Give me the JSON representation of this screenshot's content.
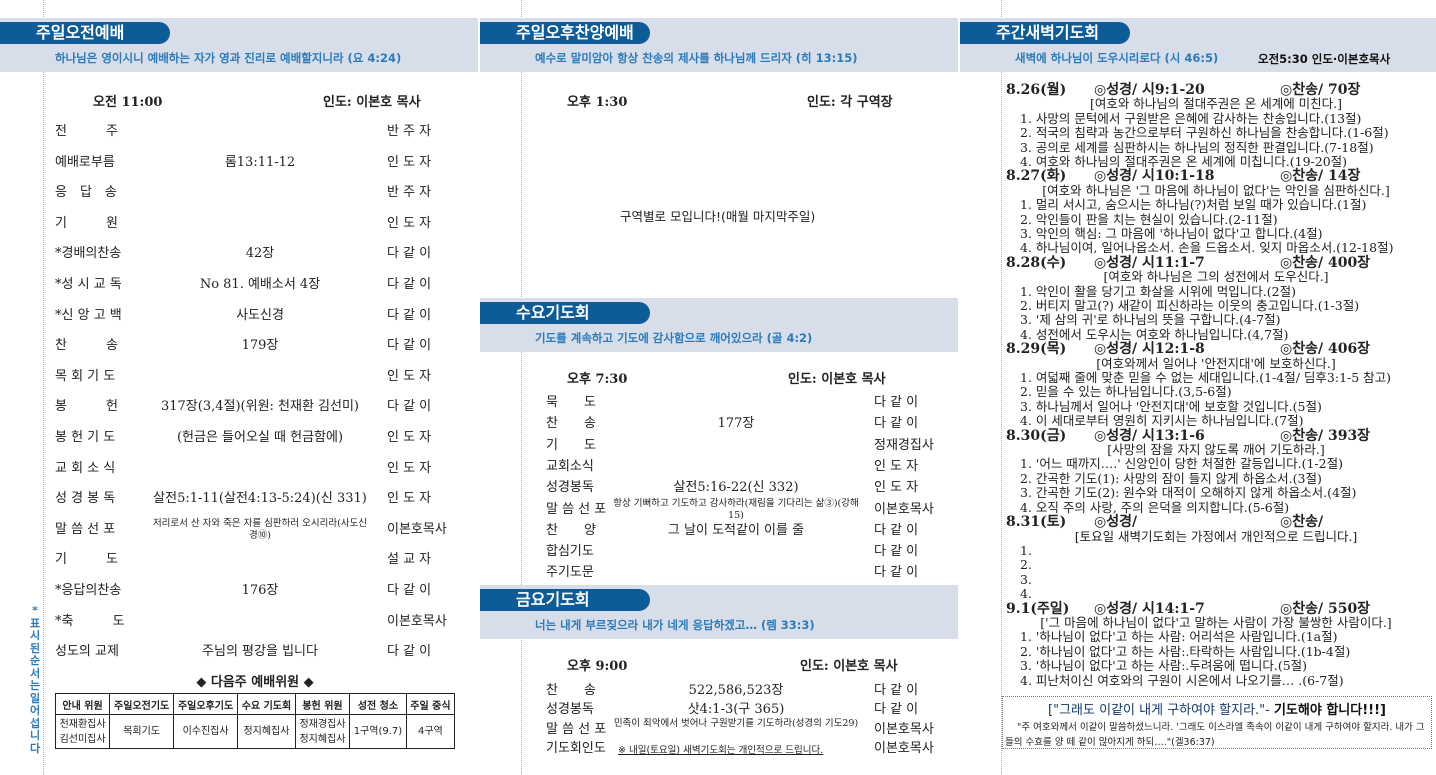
{
  "side_note": "*표시된 순서는 일어섭니다",
  "morning": {
    "title": "주일오전예배",
    "verse": "하나님은 영이시니 예배하는 자가 영과 진리로 예배할지니라 (요 4:24)",
    "time": "오전 11:00",
    "leader": "인도: 이본호 목사",
    "rows": [
      [
        "전　　　주",
        "",
        "반 주 자"
      ],
      [
        "예배로부름",
        "롬13:11-12",
        "인 도 자"
      ],
      [
        "응　답　송",
        "",
        "반 주 자"
      ],
      [
        "기　　　원",
        "",
        "인 도 자"
      ],
      [
        "*경배의찬송",
        "42장",
        "다 같 이"
      ],
      [
        "*성 시 교 독",
        "No 81. 예배소서 4장",
        "다 같 이"
      ],
      [
        "*신 앙 고 백",
        "사도신경",
        "다 같 이"
      ],
      [
        "찬　　　송",
        "179장",
        "다 같 이"
      ],
      [
        "목 회 기 도",
        "",
        "인 도 자"
      ],
      [
        "봉　　　헌",
        "317장(3,4절)(위원: 천재환 김선미)",
        "다 같 이"
      ],
      [
        "봉 헌 기 도",
        "(헌금은 들어오실 때 헌금함에)",
        "인 도 자"
      ],
      [
        "교 회 소 식",
        "",
        "인 도 자"
      ],
      [
        "성 경 봉 독",
        "살전5:1-11(살전4:13-5:24)(신 331)",
        "인 도 자"
      ],
      [
        "말 씀 선 포",
        "저리로서 산 자와 죽은 자를 심판하러 오시리라(사도신경⑩)",
        "이본호목사"
      ],
      [
        "기　　　도",
        "",
        "설 교 자"
      ],
      [
        "*응답의찬송",
        "176장",
        "다 같 이"
      ],
      [
        "*축　　　도",
        "",
        "이본호목사"
      ],
      [
        "성도의 교제",
        "주님의 평강을 빕니다",
        "다 같 이"
      ]
    ],
    "next_week": {
      "title": "◆ 다음주 예배위원 ◆",
      "headers": [
        "안내 위원",
        "주일오전기도",
        "주일오후기도",
        "수요 기도회",
        "봉헌 위원",
        "성전 청소",
        "주일 중식"
      ],
      "cells": [
        "천재환집사\n김선미집사",
        "목회기도",
        "이수진집사",
        "정지혜집사",
        "정재경집사\n정지혜집사",
        "1구역(9.7)",
        "4구역"
      ]
    }
  },
  "afternoon": {
    "title": "주일오후찬양예배",
    "verse": "예수로 말미암아 항상 찬송의 제사를 하나님께 드리자 (히 13:15)",
    "time": "오후 1:30",
    "leader": "인도: 각 구역장",
    "note": "구역별로 모입니다!(매월 마지막주일)"
  },
  "wednesday": {
    "title": "수요기도회",
    "verse": "기도를 계속하고 기도에 감사함으로 깨어있으라 (골 4:2)",
    "time": "오후 7:30",
    "leader": "인도: 이본호 목사",
    "rows": [
      [
        "묵　　도",
        "",
        "다 같 이"
      ],
      [
        "찬　　송",
        "177장",
        "다 같 이"
      ],
      [
        "기　　도",
        "",
        "정재경집사"
      ],
      [
        "교회소식",
        "",
        "인 도 자"
      ],
      [
        "성경봉독",
        "살전5:16-22(신 332)",
        "인 도 자"
      ],
      [
        "말 씀 선 포",
        "항상 기뻐하고 기도하고 감사하라(재림을 기다리는 삶③)(강해15)",
        "이본호목사"
      ],
      [
        "찬　　양",
        "그 날이 도적같이 이를 줄",
        "다 같 이"
      ],
      [
        "합심기도",
        "",
        "다 같 이"
      ],
      [
        "주기도문",
        "",
        "다 같 이"
      ]
    ]
  },
  "friday": {
    "title": "금요기도회",
    "verse": "너는 내게 부르짖으라 내가 네게 응답하겠고… (렘 33:3)",
    "time": "오후 9:00",
    "leader": "인도: 이본호 목사",
    "rows": [
      [
        "찬　　송",
        "522,586,523장",
        "다 같 이"
      ],
      [
        "성경봉독",
        "삿4:1-3(구 365)",
        "다 같 이"
      ],
      [
        "말 씀 선 포",
        "민족이 죄악에서 벗어나 구원받기를 기도하라(성경의 기도29)",
        "이본호목사"
      ],
      [
        "기도회인도",
        "",
        "이본호목사"
      ]
    ],
    "note": "※ 내일(토요일) 새벽기도회는 개인적으로 드립니다."
  },
  "dawn": {
    "title": "주간새벽기도회",
    "verse": "새벽에 하나님이 도우시리로다 (시 46:5)",
    "time_leader": "오전5:30 인도·이본호목사",
    "days": [
      {
        "date": "8.26(월)",
        "bible": "◎성경/ 시9:1-20",
        "hymn": "◎찬송/ 70장",
        "theme": "[여호와 하나님의 절대주권은 온 세계에 미친다.]",
        "items": [
          "1. 사망의 문턱에서 구원받은 은혜에 감사하는 찬송입니다.(13절)",
          "2. 적국의 침략과 농간으로부터 구원하신 하나님을 찬송합니다.(1-6절)",
          "3. 공의로 세계를 심판하시는 하나님의 정직한 판결입니다.(7-18절)",
          "4. 여호와 하나님의 절대주권은 온 세계에 미칩니다.(19-20절)"
        ]
      },
      {
        "date": "8.27(화)",
        "bible": "◎성경/ 시10:1-18",
        "hymn": "◎찬송/ 14장",
        "theme": "[여호와 하나님은 '그 마음에 하나님이 없다'는 악인을 심판하신다.]",
        "items": [
          "1. 멀리 서시고, 숨으시는 하나님(?)처럼 보일 때가 있습니다.(1절)",
          "2. 악인들이 판을 치는 현실이 있습니다.(2-11절)",
          "3. 악인의 핵심: 그 마음에 '하나님이 없다'고 합니다.(4절)",
          "4. 하나님이여, 일어나옵소서. 손을 드옵소서. 잊지 마옵소서.(12-18절)"
        ]
      },
      {
        "date": "8.28(수)",
        "bible": "◎성경/ 시11:1-7",
        "hymn": "◎찬송/ 400장",
        "theme": "[여호와 하나님은 그의 성전에서 도우신다.]",
        "items": [
          "1. 악인이 활을 당기고 화살을 시위에 먹입니다.(2절)",
          "2. 버티지 말고(?) 새같이 피신하라는 이웃의 충고입니다.(1-3절)",
          "3. '제 삼의 귀'로 하나님의 뜻을 구합니다.(4-7절)",
          "4. 성전에서 도우시는 여호와 하나님입니다.(4,7절)"
        ]
      },
      {
        "date": "8.29(목)",
        "bible": "◎성경/ 시12:1-8",
        "hymn": "◎찬송/ 406장",
        "theme": "[여호와께서 일어나 '안전지대'에 보호하신다.]",
        "items": [
          "1. 여덟째 줄에 맞춘 믿을 수 없는 세대입니다.(1-4절/ 딤후3:1-5 참고)",
          "2. 믿을 수 있는 하나님입니다.(3,5-6절)",
          "3. 하나님께서 일어나 '안전지대'에 보호할 것입니다.(5절)",
          "4. 이 세대로부터 영원히 지키시는 하나님입니다.(7절)"
        ]
      },
      {
        "date": "8.30(금)",
        "bible": "◎성경/ 시13:1-6",
        "hymn": "◎찬송/ 393장",
        "theme": "[사망의 잠을 자지 않도록 깨어 기도하라.]",
        "items": [
          "1. '어느 때까지….' 신앙인이 당한 처절한 갈등입니다.(1-2절)",
          "2. 간곡한 기도(1): 사망의 잠이 들지 않게 하옵소서.(3절)",
          "3. 간곡한 기도(2): 원수와 대적이 오해하지 않게 하옵소서.(4절)",
          "4. 오직 주의 사랑, 주의 은덕을 의지합니다.(5-6절)"
        ]
      },
      {
        "date": "8.31(토)",
        "bible": "◎성경/",
        "hymn": "◎찬송/",
        "theme": "[토요일 새벽기도회는 가정에서 개인적으로 드립니다.]",
        "items": [
          "1.",
          "2.",
          "3.",
          "4."
        ]
      },
      {
        "date": "9.1(주일)",
        "bible": "◎성경/ 시14:1-7",
        "hymn": "◎찬송/ 550장",
        "theme": "['그 마음에 하나님이 없다'고 말하는 사람이 가장 불쌍한 사람이다.]",
        "items": [
          "1. '하나님이 없다'고 하는 사람: 어리석은 사람입니다.(1a절)",
          "2. '하나님이 없다'고 하는 사람:.타락하는 사람입니다.(1b-4절)",
          "3. '하나님이 없다'고 하는 사람:.두려움에 떱니다.(5절)",
          "4. 피난처이신 여호와의 구원이 시온에서 나오기를… .(6-7절)"
        ]
      }
    ],
    "box": {
      "title_quote": "[\"그래도 이같이 내게 구하여야 할지라.\"- ",
      "title_bold": "기도해야 합니다!!!]",
      "text": "\"주 여호와께서 이같이 말씀하셨느니라. '그래도 이스라엘 족속이 이같이 내게 구하여야 할지라. 내가 그들의 수효를 양 떼 같이 많아지게 하되….\"(겔36:37)"
    }
  },
  "colors": {
    "pill": "#0d5c98",
    "band": "#d7deea",
    "verse": "#2b7bbb"
  }
}
